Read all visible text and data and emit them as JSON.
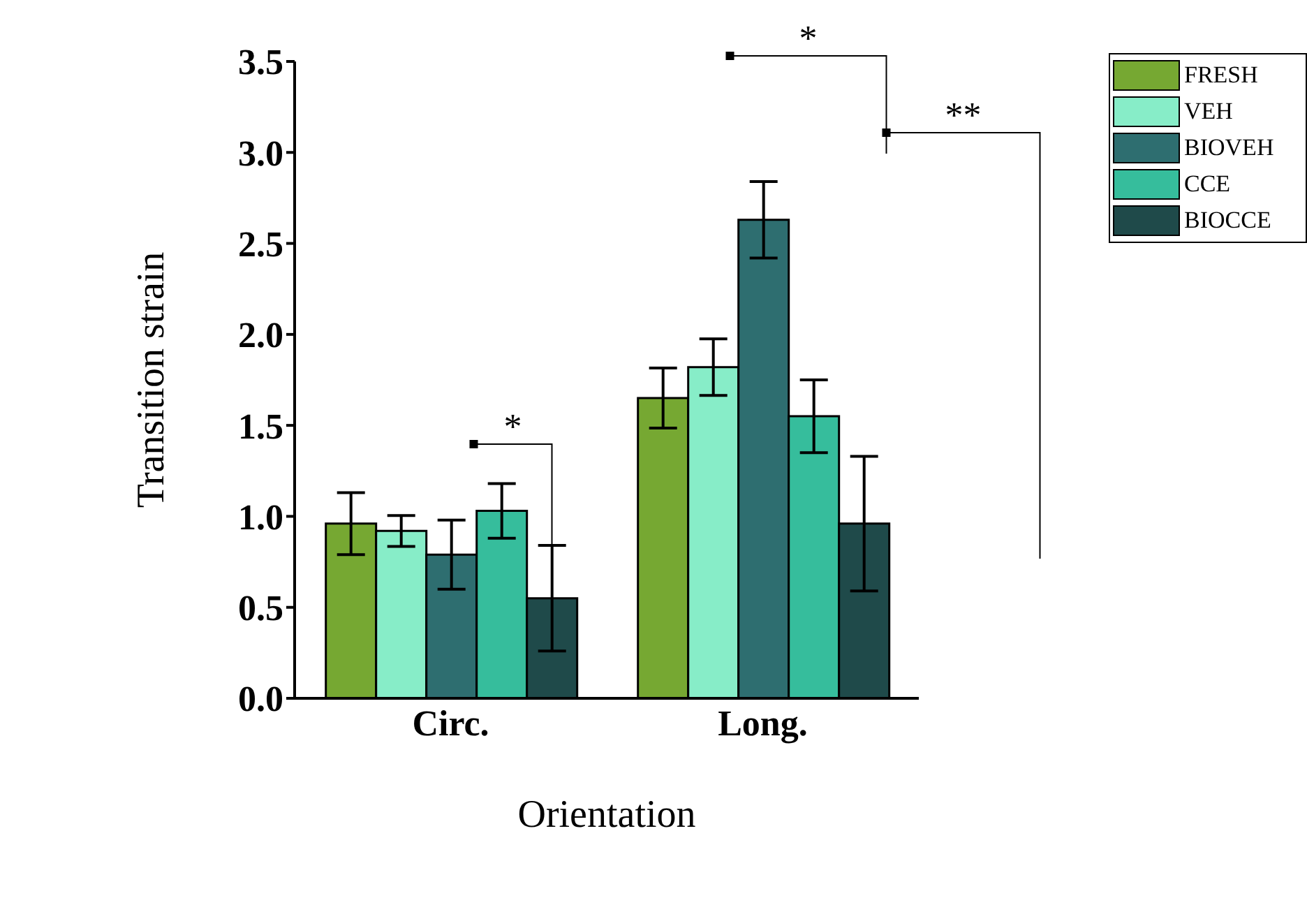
{
  "chart_data": {
    "type": "bar",
    "xlabel": "Orientation",
    "ylabel": "Transition strain",
    "categories": [
      "Circ.",
      "Long."
    ],
    "series": [
      {
        "name": "FRESH",
        "color": "#76a832",
        "values": [
          0.96,
          1.65
        ],
        "errors": [
          0.17,
          0.165
        ]
      },
      {
        "name": "VEH",
        "color": "#87edc8",
        "values": [
          0.92,
          1.82
        ],
        "errors": [
          0.085,
          0.155
        ]
      },
      {
        "name": "BIOVEH",
        "color": "#2e6e70",
        "values": [
          0.79,
          2.63
        ],
        "errors": [
          0.19,
          0.21
        ]
      },
      {
        "name": "CCE",
        "color": "#36bd9c",
        "values": [
          1.03,
          1.55
        ],
        "errors": [
          0.15,
          0.2
        ]
      },
      {
        "name": "BIOCCE",
        "color": "#1f4a4a",
        "values": [
          0.55,
          0.96
        ],
        "errors": [
          0.29,
          0.37
        ]
      }
    ],
    "ylim": [
      0,
      3.5
    ],
    "yticks": [
      {
        "value": 0,
        "label": "0.0"
      },
      0.5,
      {
        "value": 1,
        "label": "1.0"
      },
      1.5,
      {
        "value": 2,
        "label": "2.0"
      },
      2.5,
      {
        "value": 3,
        "label": "3.0"
      },
      3.5
    ],
    "legend": "top right",
    "annotations": [
      "*",
      "*",
      "**"
    ]
  }
}
